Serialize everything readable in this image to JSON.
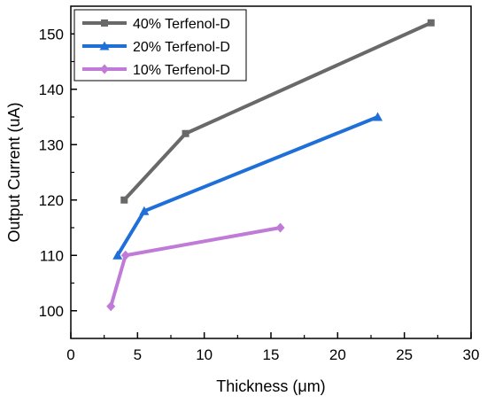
{
  "chart_data": {
    "type": "line",
    "xlabel": "Thickness (μm)",
    "ylabel": "Output Current (uA)",
    "xlim": [
      0,
      30
    ],
    "ylim": [
      95,
      155
    ],
    "xticks": [
      0,
      5,
      10,
      15,
      20,
      25,
      30
    ],
    "yticks": [
      100,
      110,
      120,
      130,
      140,
      150
    ],
    "grid": false,
    "legend_position": "top-left",
    "series": [
      {
        "name": "40% Terfenol-D",
        "color": "#696969",
        "marker": "square",
        "x": [
          4,
          8.6,
          27
        ],
        "y": [
          120,
          132,
          152
        ]
      },
      {
        "name": "20% Terfenol-D",
        "color": "#1f6fd8",
        "marker": "triangle",
        "x": [
          3.5,
          5.5,
          23
        ],
        "y": [
          110,
          118,
          135
        ]
      },
      {
        "name": "10% Terfenol-D",
        "color": "#c07ad8",
        "marker": "diamond",
        "x": [
          3.0,
          4.1,
          15.7
        ],
        "y": [
          100.8,
          110,
          115
        ]
      }
    ]
  }
}
